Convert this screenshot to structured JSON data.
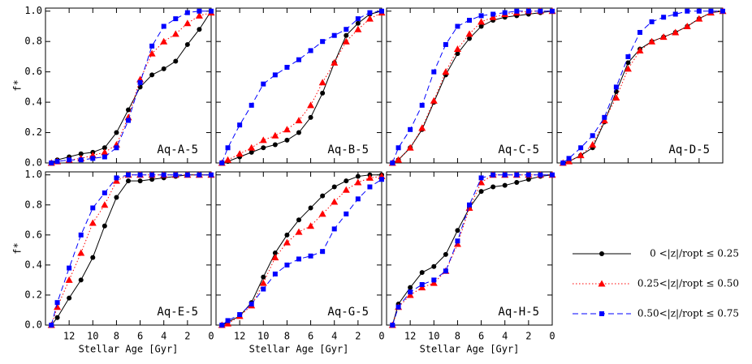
{
  "chart_data": [
    {
      "type": "line",
      "title": "Aq-A-5",
      "ylabel": "f*",
      "x": [
        13.5,
        13,
        12,
        11,
        10,
        9,
        8,
        7,
        6,
        5,
        4,
        3,
        2,
        1,
        0
      ],
      "xlim": [
        14,
        0
      ],
      "xticks": [
        12,
        10,
        8,
        6,
        4,
        2,
        0
      ],
      "ylim": [
        0,
        1.02
      ],
      "yticks": [
        {
          "value": 0,
          "label": "0.0"
        },
        {
          "value": 0.2,
          "label": "0.2"
        },
        {
          "value": 0.4,
          "label": "0.4"
        },
        {
          "value": 0.6,
          "label": "0.6"
        },
        {
          "value": 0.8,
          "label": "0.8"
        },
        {
          "value": 1,
          "label": "1.0"
        }
      ],
      "legend": "lower right",
      "series": [
        {
          "name": "0 <|z|/ropt ≤ 0.25",
          "color": "#000000",
          "marker": "circle",
          "linestyle": "solid",
          "values": [
            0,
            0.02,
            0.04,
            0.06,
            0.07,
            0.1,
            0.2,
            0.35,
            0.5,
            0.58,
            0.62,
            0.67,
            0.78,
            0.88,
            1.0
          ]
        },
        {
          "name": "0.25<|z|/ropt ≤ 0.50",
          "color": "#ff0000",
          "marker": "triangle",
          "linestyle": "dotted",
          "values": [
            0,
            0.01,
            0.02,
            0.03,
            0.05,
            0.07,
            0.12,
            0.3,
            0.55,
            0.72,
            0.8,
            0.85,
            0.92,
            0.97,
            0.99
          ]
        },
        {
          "name": "0.50<|z|/ropt ≤ 0.75",
          "color": "#0000ff",
          "marker": "square",
          "linestyle": "dashed",
          "values": [
            0,
            0.01,
            0.02,
            0.02,
            0.03,
            0.04,
            0.1,
            0.28,
            0.53,
            0.77,
            0.9,
            0.95,
            0.99,
            1.0,
            1.0
          ]
        }
      ]
    },
    {
      "type": "line",
      "title": "Aq-B-5",
      "x": [
        13.5,
        13,
        12,
        11,
        10,
        9,
        8,
        7,
        6,
        5,
        4,
        3,
        2,
        1,
        0
      ],
      "xlim": [
        14,
        0
      ],
      "xticks": [
        12,
        10,
        8,
        6,
        4,
        2,
        0
      ],
      "ylim": [
        0,
        1.02
      ],
      "yticks": [
        0,
        0.2,
        0.4,
        0.6,
        0.8,
        1
      ],
      "series": [
        {
          "color": "#000000",
          "marker": "circle",
          "linestyle": "solid",
          "values": [
            0,
            0.01,
            0.04,
            0.07,
            0.1,
            0.12,
            0.15,
            0.2,
            0.3,
            0.46,
            0.66,
            0.84,
            0.92,
            0.98,
            1.0
          ]
        },
        {
          "color": "#ff0000",
          "marker": "triangle",
          "linestyle": "dotted",
          "values": [
            0,
            0.02,
            0.06,
            0.1,
            0.15,
            0.18,
            0.22,
            0.28,
            0.38,
            0.53,
            0.66,
            0.8,
            0.88,
            0.95,
            0.99
          ]
        },
        {
          "color": "#0000ff",
          "marker": "square",
          "linestyle": "dashed",
          "values": [
            0,
            0.1,
            0.25,
            0.38,
            0.52,
            0.58,
            0.63,
            0.68,
            0.74,
            0.8,
            0.84,
            0.88,
            0.95,
            0.99,
            1.0
          ]
        }
      ]
    },
    {
      "type": "line",
      "title": "Aq-C-5",
      "x": [
        13.5,
        13,
        12,
        11,
        10,
        9,
        8,
        7,
        6,
        5,
        4,
        3,
        2,
        1,
        0
      ],
      "xlim": [
        14,
        0
      ],
      "xticks": [
        12,
        10,
        8,
        6,
        4,
        2,
        0
      ],
      "ylim": [
        0,
        1.02
      ],
      "yticks": [
        0,
        0.2,
        0.4,
        0.6,
        0.8,
        1
      ],
      "series": [
        {
          "color": "#000000",
          "marker": "circle",
          "linestyle": "solid",
          "values": [
            0,
            0.02,
            0.1,
            0.22,
            0.4,
            0.58,
            0.72,
            0.82,
            0.9,
            0.94,
            0.96,
            0.97,
            0.98,
            0.99,
            1.0
          ]
        },
        {
          "color": "#ff0000",
          "marker": "triangle",
          "linestyle": "dotted",
          "values": [
            0,
            0.02,
            0.1,
            0.23,
            0.41,
            0.6,
            0.75,
            0.85,
            0.93,
            0.96,
            0.98,
            0.99,
            1.0,
            1.0,
            1.0
          ]
        },
        {
          "color": "#0000ff",
          "marker": "square",
          "linestyle": "dashed",
          "values": [
            0,
            0.1,
            0.22,
            0.38,
            0.6,
            0.78,
            0.9,
            0.94,
            0.97,
            0.98,
            0.99,
            1.0,
            1.0,
            1.0,
            1.0
          ]
        }
      ]
    },
    {
      "type": "line",
      "title": "Aq-D-5",
      "x": [
        13.5,
        13,
        12,
        11,
        10,
        9,
        8,
        7,
        6,
        5,
        4,
        3,
        2,
        1,
        0
      ],
      "xlim": [
        14,
        0
      ],
      "xticks": [
        12,
        10,
        8,
        6,
        4,
        2,
        0
      ],
      "ylim": [
        0,
        1.02
      ],
      "yticks": [
        0,
        0.2,
        0.4,
        0.6,
        0.8,
        1
      ],
      "series": [
        {
          "color": "#000000",
          "marker": "circle",
          "linestyle": "solid",
          "values": [
            0,
            0.01,
            0.05,
            0.1,
            0.27,
            0.47,
            0.66,
            0.75,
            0.8,
            0.83,
            0.86,
            0.9,
            0.95,
            0.99,
            1.0
          ]
        },
        {
          "color": "#ff0000",
          "marker": "triangle",
          "linestyle": "dotted",
          "values": [
            0,
            0.01,
            0.05,
            0.12,
            0.28,
            0.43,
            0.62,
            0.74,
            0.8,
            0.83,
            0.86,
            0.9,
            0.95,
            0.99,
            1.0
          ]
        },
        {
          "color": "#0000ff",
          "marker": "square",
          "linestyle": "dashed",
          "values": [
            0,
            0.03,
            0.1,
            0.18,
            0.3,
            0.5,
            0.7,
            0.86,
            0.93,
            0.96,
            0.98,
            1.0,
            1.0,
            1.0,
            1.0
          ]
        }
      ]
    },
    {
      "type": "line",
      "title": "Aq-E-5",
      "xlabel": "Stellar Age [Gyr]",
      "ylabel": "f*",
      "x": [
        13.5,
        13,
        12,
        11,
        10,
        9,
        8,
        7,
        6,
        5,
        4,
        3,
        2,
        1,
        0
      ],
      "xlim": [
        14,
        0
      ],
      "xticks": [
        12,
        10,
        8,
        6,
        4,
        2,
        0
      ],
      "ylim": [
        0,
        1.02
      ],
      "yticks": [
        {
          "value": 0,
          "label": "0.0"
        },
        {
          "value": 0.2,
          "label": "0.2"
        },
        {
          "value": 0.4,
          "label": "0.4"
        },
        {
          "value": 0.6,
          "label": "0.6"
        },
        {
          "value": 0.8,
          "label": "0.8"
        },
        {
          "value": 1,
          "label": "1.0"
        }
      ],
      "series": [
        {
          "color": "#000000",
          "marker": "circle",
          "linestyle": "solid",
          "values": [
            0,
            0.05,
            0.18,
            0.3,
            0.45,
            0.66,
            0.85,
            0.96,
            0.96,
            0.97,
            0.98,
            0.99,
            1.0,
            1.0,
            1.0
          ]
        },
        {
          "color": "#ff0000",
          "marker": "triangle",
          "linestyle": "dotted",
          "values": [
            0,
            0.12,
            0.3,
            0.48,
            0.68,
            0.8,
            0.96,
            1.0,
            1.0,
            1.0,
            1.0,
            1.0,
            1.0,
            1.0,
            1.0
          ]
        },
        {
          "color": "#0000ff",
          "marker": "square",
          "linestyle": "dashed",
          "values": [
            0,
            0.15,
            0.38,
            0.6,
            0.78,
            0.88,
            0.98,
            1.0,
            1.0,
            1.0,
            1.0,
            1.0,
            1.0,
            1.0,
            1.0
          ]
        }
      ]
    },
    {
      "type": "line",
      "title": "Aq-G-5",
      "xlabel": "Stellar Age [Gyr]",
      "x": [
        13.5,
        13,
        12,
        11,
        10,
        9,
        8,
        7,
        6,
        5,
        4,
        3,
        2,
        1,
        0
      ],
      "xlim": [
        14,
        0
      ],
      "xticks": [
        12,
        10,
        8,
        6,
        4,
        2,
        0
      ],
      "ylim": [
        0,
        1.02
      ],
      "yticks": [
        0,
        0.2,
        0.4,
        0.6,
        0.8,
        1
      ],
      "series": [
        {
          "color": "#000000",
          "marker": "circle",
          "linestyle": "solid",
          "values": [
            0,
            0.02,
            0.06,
            0.15,
            0.32,
            0.48,
            0.6,
            0.7,
            0.78,
            0.86,
            0.92,
            0.96,
            0.99,
            1.0,
            1.0
          ]
        },
        {
          "color": "#ff0000",
          "marker": "triangle",
          "linestyle": "dotted",
          "values": [
            0,
            0.01,
            0.06,
            0.13,
            0.28,
            0.45,
            0.55,
            0.62,
            0.66,
            0.74,
            0.82,
            0.9,
            0.95,
            0.98,
            0.99
          ]
        },
        {
          "color": "#0000ff",
          "marker": "square",
          "linestyle": "dashed",
          "values": [
            0,
            0.03,
            0.07,
            0.14,
            0.24,
            0.34,
            0.4,
            0.44,
            0.46,
            0.49,
            0.64,
            0.74,
            0.84,
            0.92,
            0.97
          ]
        }
      ]
    },
    {
      "type": "line",
      "title": "Aq-H-5",
      "xlabel": "Stellar Age [Gyr]",
      "x": [
        13.5,
        13,
        12,
        11,
        10,
        9,
        8,
        7,
        6,
        5,
        4,
        3,
        2,
        1,
        0
      ],
      "xlim": [
        14,
        0
      ],
      "xticks": [
        12,
        10,
        8,
        6,
        4,
        2,
        0
      ],
      "ylim": [
        0,
        1.02
      ],
      "yticks": [
        0,
        0.2,
        0.4,
        0.6,
        0.8,
        1
      ],
      "series": [
        {
          "color": "#000000",
          "marker": "circle",
          "linestyle": "solid",
          "values": [
            0,
            0.14,
            0.25,
            0.35,
            0.39,
            0.47,
            0.63,
            0.78,
            0.89,
            0.92,
            0.93,
            0.95,
            0.97,
            0.99,
            1.0
          ]
        },
        {
          "color": "#ff0000",
          "marker": "triangle",
          "linestyle": "dotted",
          "values": [
            0,
            0.12,
            0.2,
            0.25,
            0.28,
            0.36,
            0.54,
            0.78,
            0.95,
            1.0,
            1.0,
            1.0,
            1.0,
            1.0,
            1.0
          ]
        },
        {
          "color": "#0000ff",
          "marker": "square",
          "linestyle": "dashed",
          "values": [
            0,
            0.12,
            0.22,
            0.27,
            0.3,
            0.36,
            0.56,
            0.8,
            0.98,
            1.0,
            1.0,
            1.0,
            1.0,
            1.0,
            1.0
          ]
        }
      ]
    }
  ]
}
